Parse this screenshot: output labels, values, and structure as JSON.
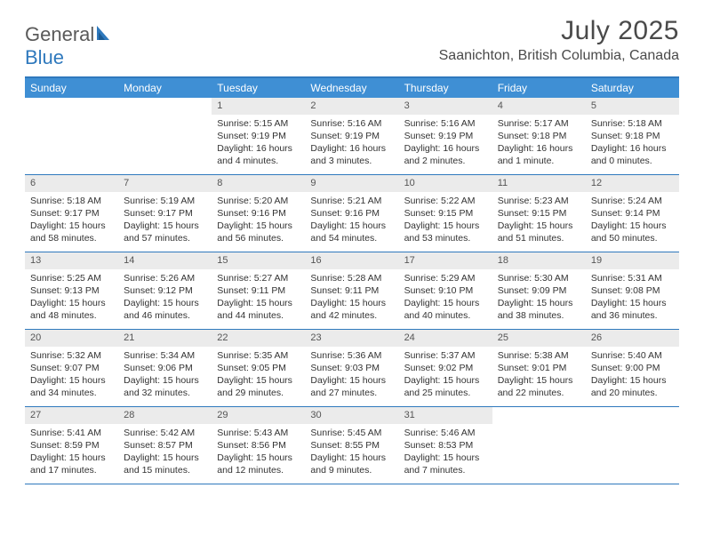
{
  "logo": {
    "part1": "General",
    "part2": "Blue"
  },
  "title": "July 2025",
  "location": "Saanichton, British Columbia, Canada",
  "colors": {
    "header_bar": "#3f8fd4",
    "border": "#2f79bd",
    "daynum_bg": "#ebebeb",
    "text": "#333333"
  },
  "weekdays": [
    "Sunday",
    "Monday",
    "Tuesday",
    "Wednesday",
    "Thursday",
    "Friday",
    "Saturday"
  ],
  "weeks": [
    [
      null,
      null,
      {
        "n": "1",
        "sr": "5:15 AM",
        "ss": "9:19 PM",
        "dl": "16 hours and 4 minutes."
      },
      {
        "n": "2",
        "sr": "5:16 AM",
        "ss": "9:19 PM",
        "dl": "16 hours and 3 minutes."
      },
      {
        "n": "3",
        "sr": "5:16 AM",
        "ss": "9:19 PM",
        "dl": "16 hours and 2 minutes."
      },
      {
        "n": "4",
        "sr": "5:17 AM",
        "ss": "9:18 PM",
        "dl": "16 hours and 1 minute."
      },
      {
        "n": "5",
        "sr": "5:18 AM",
        "ss": "9:18 PM",
        "dl": "16 hours and 0 minutes."
      }
    ],
    [
      {
        "n": "6",
        "sr": "5:18 AM",
        "ss": "9:17 PM",
        "dl": "15 hours and 58 minutes."
      },
      {
        "n": "7",
        "sr": "5:19 AM",
        "ss": "9:17 PM",
        "dl": "15 hours and 57 minutes."
      },
      {
        "n": "8",
        "sr": "5:20 AM",
        "ss": "9:16 PM",
        "dl": "15 hours and 56 minutes."
      },
      {
        "n": "9",
        "sr": "5:21 AM",
        "ss": "9:16 PM",
        "dl": "15 hours and 54 minutes."
      },
      {
        "n": "10",
        "sr": "5:22 AM",
        "ss": "9:15 PM",
        "dl": "15 hours and 53 minutes."
      },
      {
        "n": "11",
        "sr": "5:23 AM",
        "ss": "9:15 PM",
        "dl": "15 hours and 51 minutes."
      },
      {
        "n": "12",
        "sr": "5:24 AM",
        "ss": "9:14 PM",
        "dl": "15 hours and 50 minutes."
      }
    ],
    [
      {
        "n": "13",
        "sr": "5:25 AM",
        "ss": "9:13 PM",
        "dl": "15 hours and 48 minutes."
      },
      {
        "n": "14",
        "sr": "5:26 AM",
        "ss": "9:12 PM",
        "dl": "15 hours and 46 minutes."
      },
      {
        "n": "15",
        "sr": "5:27 AM",
        "ss": "9:11 PM",
        "dl": "15 hours and 44 minutes."
      },
      {
        "n": "16",
        "sr": "5:28 AM",
        "ss": "9:11 PM",
        "dl": "15 hours and 42 minutes."
      },
      {
        "n": "17",
        "sr": "5:29 AM",
        "ss": "9:10 PM",
        "dl": "15 hours and 40 minutes."
      },
      {
        "n": "18",
        "sr": "5:30 AM",
        "ss": "9:09 PM",
        "dl": "15 hours and 38 minutes."
      },
      {
        "n": "19",
        "sr": "5:31 AM",
        "ss": "9:08 PM",
        "dl": "15 hours and 36 minutes."
      }
    ],
    [
      {
        "n": "20",
        "sr": "5:32 AM",
        "ss": "9:07 PM",
        "dl": "15 hours and 34 minutes."
      },
      {
        "n": "21",
        "sr": "5:34 AM",
        "ss": "9:06 PM",
        "dl": "15 hours and 32 minutes."
      },
      {
        "n": "22",
        "sr": "5:35 AM",
        "ss": "9:05 PM",
        "dl": "15 hours and 29 minutes."
      },
      {
        "n": "23",
        "sr": "5:36 AM",
        "ss": "9:03 PM",
        "dl": "15 hours and 27 minutes."
      },
      {
        "n": "24",
        "sr": "5:37 AM",
        "ss": "9:02 PM",
        "dl": "15 hours and 25 minutes."
      },
      {
        "n": "25",
        "sr": "5:38 AM",
        "ss": "9:01 PM",
        "dl": "15 hours and 22 minutes."
      },
      {
        "n": "26",
        "sr": "5:40 AM",
        "ss": "9:00 PM",
        "dl": "15 hours and 20 minutes."
      }
    ],
    [
      {
        "n": "27",
        "sr": "5:41 AM",
        "ss": "8:59 PM",
        "dl": "15 hours and 17 minutes."
      },
      {
        "n": "28",
        "sr": "5:42 AM",
        "ss": "8:57 PM",
        "dl": "15 hours and 15 minutes."
      },
      {
        "n": "29",
        "sr": "5:43 AM",
        "ss": "8:56 PM",
        "dl": "15 hours and 12 minutes."
      },
      {
        "n": "30",
        "sr": "5:45 AM",
        "ss": "8:55 PM",
        "dl": "15 hours and 9 minutes."
      },
      {
        "n": "31",
        "sr": "5:46 AM",
        "ss": "8:53 PM",
        "dl": "15 hours and 7 minutes."
      },
      null,
      null
    ]
  ],
  "labels": {
    "sunrise": "Sunrise:",
    "sunset": "Sunset:",
    "daylight": "Daylight:"
  }
}
